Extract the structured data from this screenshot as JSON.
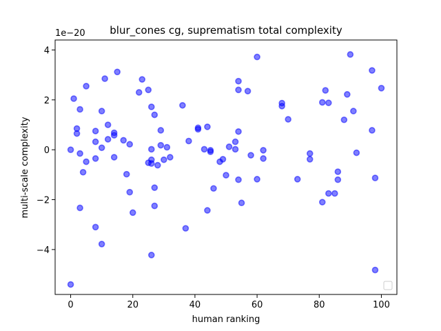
{
  "chart_data": {
    "type": "scatter",
    "title": "blur_cones cg, suprematism total complexity",
    "xlabel": "human ranking",
    "ylabel": "multi-scale complexity",
    "y_offset_label": "1e−20",
    "xlim": [
      -5,
      105
    ],
    "ylim": [
      -5.8,
      4.4
    ],
    "xticks": [
      0,
      20,
      40,
      60,
      80,
      100
    ],
    "xtick_labels": [
      "0",
      "20",
      "40",
      "60",
      "80",
      "100"
    ],
    "yticks": [
      -4,
      -2,
      0,
      2,
      4
    ],
    "ytick_labels": [
      "−4",
      "−2",
      "0",
      "2",
      "4"
    ],
    "grid": false,
    "legend": "lower-right (empty)",
    "marker_color": "#0000ff",
    "series": [
      {
        "points": [
          [
            0,
            -5.4
          ],
          [
            0,
            0.0
          ],
          [
            1,
            2.05
          ],
          [
            2,
            0.85
          ],
          [
            2,
            0.65
          ],
          [
            3,
            1.62
          ],
          [
            3,
            -0.15
          ],
          [
            3,
            -2.33
          ],
          [
            4,
            -0.9
          ],
          [
            5,
            -0.48
          ],
          [
            5,
            2.55
          ],
          [
            8,
            0.75
          ],
          [
            8,
            0.32
          ],
          [
            8,
            -0.35
          ],
          [
            8,
            -3.1
          ],
          [
            10,
            1.55
          ],
          [
            10,
            0.08
          ],
          [
            10,
            -3.78
          ],
          [
            11,
            2.85
          ],
          [
            12,
            1.0
          ],
          [
            12,
            0.42
          ],
          [
            14,
            0.68
          ],
          [
            14,
            0.58
          ],
          [
            14,
            -0.3
          ],
          [
            15,
            3.12
          ],
          [
            17,
            0.38
          ],
          [
            18,
            -0.98
          ],
          [
            19,
            0.22
          ],
          [
            19,
            -1.7
          ],
          [
            20,
            -2.52
          ],
          [
            22,
            2.3
          ],
          [
            23,
            2.82
          ],
          [
            25,
            2.4
          ],
          [
            25,
            -0.52
          ],
          [
            26,
            1.72
          ],
          [
            26,
            0.02
          ],
          [
            26,
            -0.4
          ],
          [
            26,
            -0.55
          ],
          [
            26,
            -4.22
          ],
          [
            27,
            1.4
          ],
          [
            27,
            -1.52
          ],
          [
            27,
            -2.25
          ],
          [
            28,
            -0.62
          ],
          [
            29,
            0.78
          ],
          [
            29,
            0.18
          ],
          [
            30,
            -0.4
          ],
          [
            31,
            0.1
          ],
          [
            32,
            -0.3
          ],
          [
            36,
            1.78
          ],
          [
            37,
            -3.15
          ],
          [
            38,
            0.35
          ],
          [
            41,
            0.88
          ],
          [
            41,
            0.82
          ],
          [
            43,
            0.02
          ],
          [
            44,
            0.92
          ],
          [
            44,
            -2.43
          ],
          [
            45,
            -0.02
          ],
          [
            45,
            -0.08
          ],
          [
            46,
            -1.55
          ],
          [
            48,
            -0.48
          ],
          [
            49,
            -0.38
          ],
          [
            50,
            -1.02
          ],
          [
            51,
            0.12
          ],
          [
            53,
            0.32
          ],
          [
            53,
            0.02
          ],
          [
            54,
            2.75
          ],
          [
            54,
            2.4
          ],
          [
            54,
            0.73
          ],
          [
            54,
            -1.2
          ],
          [
            55,
            -2.13
          ],
          [
            57,
            2.35
          ],
          [
            58,
            -0.22
          ],
          [
            60,
            3.72
          ],
          [
            60,
            -1.18
          ],
          [
            62,
            -0.02
          ],
          [
            62,
            -0.35
          ],
          [
            68,
            1.87
          ],
          [
            68,
            1.75
          ],
          [
            70,
            1.22
          ],
          [
            73,
            -1.18
          ],
          [
            77,
            -0.15
          ],
          [
            77,
            -0.38
          ],
          [
            81,
            1.9
          ],
          [
            81,
            -2.1
          ],
          [
            82,
            2.38
          ],
          [
            83,
            1.88
          ],
          [
            83,
            -1.75
          ],
          [
            85,
            -1.75
          ],
          [
            86,
            -0.88
          ],
          [
            86,
            -1.2
          ],
          [
            88,
            1.2
          ],
          [
            89,
            2.22
          ],
          [
            90,
            3.82
          ],
          [
            91,
            1.55
          ],
          [
            92,
            -0.12
          ],
          [
            97,
            3.18
          ],
          [
            97,
            0.78
          ],
          [
            98,
            -1.13
          ],
          [
            98,
            -4.82
          ],
          [
            100,
            2.47
          ]
        ]
      }
    ]
  }
}
